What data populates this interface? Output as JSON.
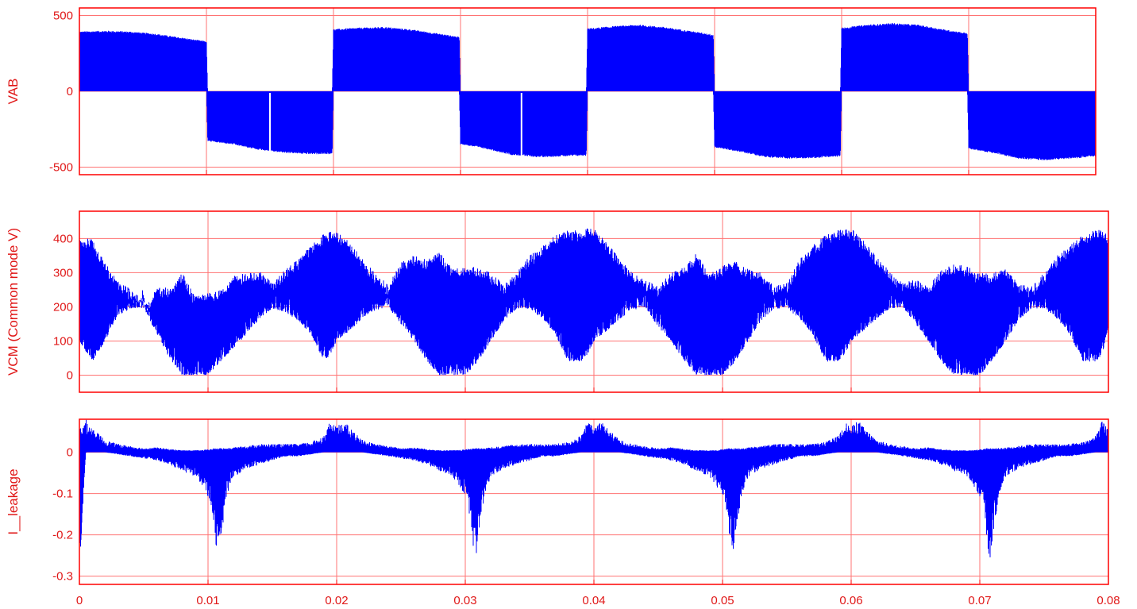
{
  "colors": {
    "frame": "#ff0000",
    "grid": "#ff7373",
    "trace": "#0000ff",
    "text": "#e01818"
  },
  "chart_data": [
    {
      "type": "area",
      "ylabel": "VAB",
      "xlim": [
        0,
        0.08
      ],
      "ylim": [
        -550,
        550
      ],
      "y_ticks": [
        -500,
        0,
        500
      ],
      "y_tick_labels": [
        "-500",
        "0",
        "500"
      ],
      "x_ticks": [
        0,
        0.01,
        0.02,
        0.03,
        0.04,
        0.05,
        0.06,
        0.07,
        0.08
      ],
      "grid": true,
      "envelope": {
        "x": [
          0,
          0.002,
          0.004,
          0.006,
          0.008,
          0.01,
          0.0101,
          0.012,
          0.014,
          0.016,
          0.018,
          0.0199,
          0.02,
          0.022,
          0.024,
          0.026,
          0.028,
          0.0299,
          0.03,
          0.032,
          0.034,
          0.036,
          0.038,
          0.0399,
          0.04,
          0.042,
          0.044,
          0.046,
          0.048,
          0.0499,
          0.05,
          0.052,
          0.054,
          0.056,
          0.058,
          0.0599,
          0.06,
          0.062,
          0.064,
          0.066,
          0.068,
          0.0699,
          0.07,
          0.072,
          0.074,
          0.076,
          0.078,
          0.08
        ],
        "upper": [
          395,
          400,
          395,
          380,
          355,
          330,
          0,
          0,
          0,
          0,
          0,
          0,
          410,
          420,
          425,
          410,
          385,
          360,
          0,
          0,
          0,
          0,
          0,
          0,
          415,
          430,
          440,
          425,
          400,
          375,
          0,
          0,
          0,
          0,
          0,
          0,
          420,
          440,
          450,
          440,
          410,
          385,
          0,
          0,
          0,
          0,
          0,
          0
        ],
        "lower": [
          0,
          0,
          0,
          0,
          0,
          0,
          -330,
          -350,
          -385,
          -405,
          -415,
          -415,
          0,
          0,
          0,
          0,
          0,
          0,
          -350,
          -380,
          -420,
          -435,
          -430,
          -425,
          0,
          0,
          0,
          0,
          0,
          0,
          -370,
          -400,
          -435,
          -445,
          -440,
          -430,
          0,
          0,
          0,
          0,
          0,
          0,
          -380,
          -410,
          -445,
          -455,
          -445,
          -430
        ]
      },
      "gaps": [
        0.015,
        0.0348
      ]
    },
    {
      "type": "area",
      "ylabel": "VCM (Common mode V)",
      "xlim": [
        0,
        0.08
      ],
      "ylim": [
        -50,
        480
      ],
      "y_ticks": [
        0,
        100,
        200,
        300,
        400
      ],
      "y_tick_labels": [
        "0",
        "100",
        "200",
        "300",
        "400"
      ],
      "x_ticks": [
        0,
        0.01,
        0.02,
        0.03,
        0.04,
        0.05,
        0.06,
        0.07,
        0.08
      ],
      "grid": true,
      "envelope": {
        "x": [
          0,
          0.001,
          0.002,
          0.0025,
          0.003,
          0.004,
          0.005,
          0.0055,
          0.006,
          0.007,
          0.008,
          0.009,
          0.01,
          0.011,
          0.012,
          0.013,
          0.014,
          0.015,
          0.016,
          0.017,
          0.018,
          0.019,
          0.0195,
          0.02,
          0.021,
          0.022,
          0.023,
          0.024,
          0.025,
          0.026,
          0.027,
          0.028,
          0.029,
          0.03,
          0.031,
          0.032,
          0.033,
          0.034,
          0.035,
          0.036,
          0.037,
          0.038,
          0.039,
          0.0395,
          0.04,
          0.041,
          0.042,
          0.043,
          0.044,
          0.045,
          0.046,
          0.047,
          0.048,
          0.049,
          0.05,
          0.051,
          0.052,
          0.053,
          0.054,
          0.055,
          0.056,
          0.057,
          0.058,
          0.059,
          0.0595,
          0.06,
          0.061,
          0.062,
          0.063,
          0.064,
          0.065,
          0.066,
          0.067,
          0.068,
          0.069,
          0.07,
          0.071,
          0.072,
          0.073,
          0.074,
          0.075,
          0.076,
          0.077,
          0.078,
          0.079,
          0.0795,
          0.08
        ],
        "upper": [
          400,
          400,
          330,
          300,
          280,
          250,
          225,
          205,
          265,
          255,
          300,
          230,
          240,
          250,
          290,
          300,
          305,
          270,
          310,
          340,
          380,
          415,
          420,
          420,
          390,
          340,
          300,
          265,
          330,
          350,
          340,
          360,
          310,
          320,
          315,
          300,
          265,
          300,
          350,
          380,
          410,
          425,
          425,
          430,
          430,
          390,
          340,
          300,
          280,
          260,
          300,
          315,
          360,
          300,
          320,
          335,
          310,
          300,
          260,
          270,
          340,
          380,
          410,
          425,
          430,
          430,
          395,
          345,
          305,
          270,
          280,
          260,
          310,
          325,
          320,
          300,
          300,
          310,
          270,
          260,
          300,
          350,
          380,
          410,
          425,
          425,
          420
        ],
        "lower": [
          100,
          40,
          100,
          140,
          175,
          195,
          200,
          160,
          120,
          50,
          0,
          0,
          0,
          40,
          80,
          120,
          165,
          195,
          185,
          160,
          120,
          40,
          60,
          100,
          130,
          165,
          190,
          200,
          150,
          100,
          40,
          0,
          0,
          0,
          40,
          100,
          160,
          195,
          195,
          165,
          120,
          40,
          40,
          60,
          100,
          130,
          165,
          190,
          200,
          140,
          100,
          40,
          0,
          0,
          0,
          40,
          100,
          160,
          195,
          195,
          165,
          120,
          40,
          40,
          60,
          100,
          130,
          165,
          195,
          200,
          150,
          100,
          40,
          0,
          0,
          0,
          40,
          100,
          160,
          195,
          195,
          165,
          120,
          40,
          40,
          60,
          140
        ]
      }
    },
    {
      "type": "area",
      "ylabel": "I__leakage",
      "xlim": [
        0,
        0.08
      ],
      "ylim": [
        -0.32,
        0.08
      ],
      "y_ticks": [
        -0.3,
        -0.2,
        -0.1,
        0
      ],
      "y_tick_labels": [
        "-0.3",
        "-0.2",
        "-0.1",
        "0"
      ],
      "x_ticks": [
        0,
        0.01,
        0.02,
        0.03,
        0.04,
        0.05,
        0.06,
        0.07,
        0.08
      ],
      "x_tick_labels": [
        "0",
        "0.01",
        "0.02",
        "0.03",
        "0.04",
        "0.05",
        "0.06",
        "0.07",
        "0.08"
      ],
      "grid": true,
      "envelope": {
        "x": [
          0,
          0.0005,
          0.001,
          0.002,
          0.003,
          0.004,
          0.005,
          0.006,
          0.007,
          0.008,
          0.009,
          0.0095,
          0.0102,
          0.0105,
          0.0108,
          0.011,
          0.0115,
          0.012,
          0.013,
          0.014,
          0.015,
          0.016,
          0.017,
          0.018,
          0.019,
          0.0195,
          0.02,
          0.0205,
          0.021,
          0.022,
          0.023,
          0.024,
          0.025,
          0.026,
          0.027,
          0.028,
          0.029,
          0.0295,
          0.0302,
          0.0305,
          0.0308,
          0.031,
          0.0315,
          0.032,
          0.033,
          0.034,
          0.035,
          0.036,
          0.037,
          0.038,
          0.039,
          0.0395,
          0.04,
          0.0405,
          0.041,
          0.042,
          0.043,
          0.044,
          0.045,
          0.046,
          0.047,
          0.048,
          0.049,
          0.0495,
          0.0502,
          0.0505,
          0.0508,
          0.051,
          0.0515,
          0.052,
          0.053,
          0.054,
          0.055,
          0.056,
          0.057,
          0.058,
          0.059,
          0.0595,
          0.06,
          0.0605,
          0.061,
          0.062,
          0.063,
          0.064,
          0.065,
          0.066,
          0.067,
          0.068,
          0.069,
          0.0695,
          0.0702,
          0.0705,
          0.0708,
          0.071,
          0.0715,
          0.072,
          0.073,
          0.074,
          0.075,
          0.076,
          0.077,
          0.078,
          0.079,
          0.0795,
          0.08
        ],
        "upper": [
          0.06,
          0.08,
          0.06,
          0.03,
          0.02,
          0.015,
          0.01,
          0.012,
          0.008,
          0.005,
          0.005,
          0.005,
          0.008,
          0.01,
          0.01,
          0.01,
          0.01,
          0.012,
          0.015,
          0.02,
          0.02,
          0.02,
          0.02,
          0.025,
          0.04,
          0.075,
          0.06,
          0.08,
          0.06,
          0.03,
          0.02,
          0.015,
          0.01,
          0.012,
          0.008,
          0.005,
          0.005,
          0.005,
          0.008,
          0.01,
          0.01,
          0.01,
          0.01,
          0.012,
          0.015,
          0.02,
          0.02,
          0.02,
          0.02,
          0.025,
          0.04,
          0.075,
          0.06,
          0.08,
          0.06,
          0.03,
          0.02,
          0.015,
          0.01,
          0.012,
          0.008,
          0.005,
          0.005,
          0.005,
          0.008,
          0.01,
          0.01,
          0.01,
          0.01,
          0.012,
          0.015,
          0.02,
          0.02,
          0.02,
          0.02,
          0.025,
          0.04,
          0.075,
          0.06,
          0.08,
          0.06,
          0.03,
          0.02,
          0.015,
          0.01,
          0.012,
          0.008,
          0.005,
          0.005,
          0.005,
          0.008,
          0.01,
          0.01,
          0.01,
          0.01,
          0.012,
          0.015,
          0.02,
          0.02,
          0.02,
          0.02,
          0.025,
          0.04,
          0.075,
          0.06
        ],
        "lower": [
          -0.3,
          0,
          0,
          0,
          -0.005,
          -0.01,
          -0.015,
          -0.02,
          -0.03,
          -0.045,
          -0.06,
          -0.08,
          -0.12,
          -0.2,
          -0.27,
          -0.21,
          -0.1,
          -0.06,
          -0.04,
          -0.03,
          -0.02,
          -0.01,
          -0.01,
          -0.005,
          0,
          0,
          0,
          0,
          0,
          0,
          -0.005,
          -0.01,
          -0.015,
          -0.02,
          -0.03,
          -0.045,
          -0.06,
          -0.08,
          -0.12,
          -0.2,
          -0.27,
          -0.21,
          -0.1,
          -0.06,
          -0.04,
          -0.03,
          -0.02,
          -0.01,
          -0.01,
          -0.005,
          0,
          0,
          0,
          0,
          0,
          0,
          -0.005,
          -0.01,
          -0.015,
          -0.02,
          -0.03,
          -0.045,
          -0.06,
          -0.08,
          -0.12,
          -0.2,
          -0.27,
          -0.21,
          -0.1,
          -0.06,
          -0.04,
          -0.03,
          -0.02,
          -0.01,
          -0.01,
          -0.005,
          0,
          0,
          0,
          0,
          0,
          0,
          -0.005,
          -0.01,
          -0.015,
          -0.02,
          -0.03,
          -0.045,
          -0.06,
          -0.08,
          -0.12,
          -0.2,
          -0.28,
          -0.21,
          -0.1,
          -0.06,
          -0.04,
          -0.03,
          -0.02,
          -0.01,
          -0.01,
          -0.005,
          0,
          0,
          0
        ]
      }
    }
  ]
}
